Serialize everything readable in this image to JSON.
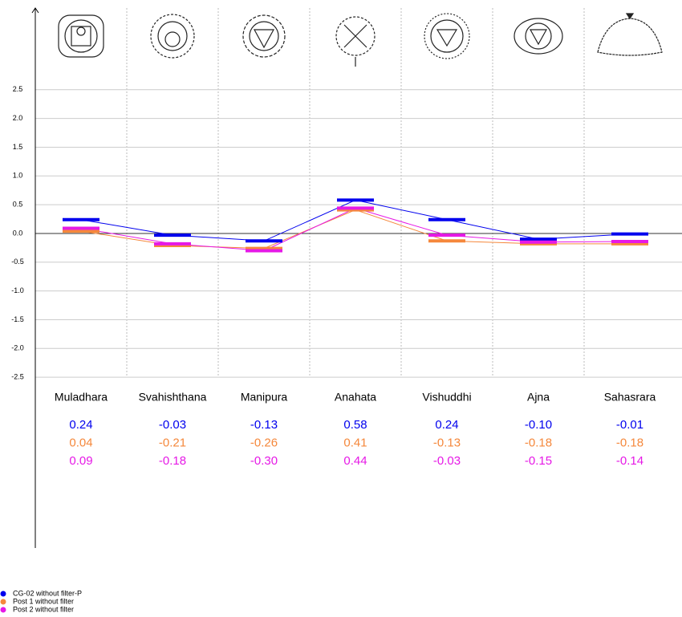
{
  "chart_data": {
    "type": "line",
    "categories": [
      "Muladhara",
      "Svahishthana",
      "Manipura",
      "Anahata",
      "Vishuddhi",
      "Ajna",
      "Sahasrara"
    ],
    "series": [
      {
        "name": "CG-02 without filter-P",
        "color": "#0000ee",
        "values": [
          0.24,
          -0.03,
          -0.13,
          0.58,
          0.24,
          -0.1,
          -0.01
        ],
        "value_labels": [
          "0.24",
          "-0.03",
          "-0.13",
          "0.58",
          "0.24",
          "-0.10",
          "-0.01"
        ]
      },
      {
        "name": "Post 1 without filter",
        "color": "#f5883c",
        "values": [
          0.04,
          -0.21,
          -0.26,
          0.41,
          -0.13,
          -0.18,
          -0.18
        ],
        "value_labels": [
          "0.04",
          "-0.21",
          "-0.26",
          "0.41",
          "-0.13",
          "-0.18",
          "-0.18"
        ]
      },
      {
        "name": "Post 2 without filter",
        "color": "#e619e6",
        "values": [
          0.09,
          -0.18,
          -0.3,
          0.44,
          -0.03,
          -0.15,
          -0.14
        ],
        "value_labels": [
          "0.09",
          "-0.18",
          "-0.30",
          "0.44",
          "-0.03",
          "-0.15",
          "-0.14"
        ]
      }
    ],
    "ylim": [
      -5.47,
      3.92
    ],
    "yticks": [
      2.5,
      {
        "value": 2.0,
        "label": "2.0"
      },
      1.5,
      {
        "value": 1.0,
        "label": "1.0"
      },
      0.5,
      {
        "value": 0.0,
        "label": "0.0"
      },
      -0.5,
      {
        "value": -1.0,
        "label": "-1.0"
      },
      -1.5,
      {
        "value": -2.0,
        "label": "-2.0"
      },
      -2.5
    ],
    "grid": true
  }
}
